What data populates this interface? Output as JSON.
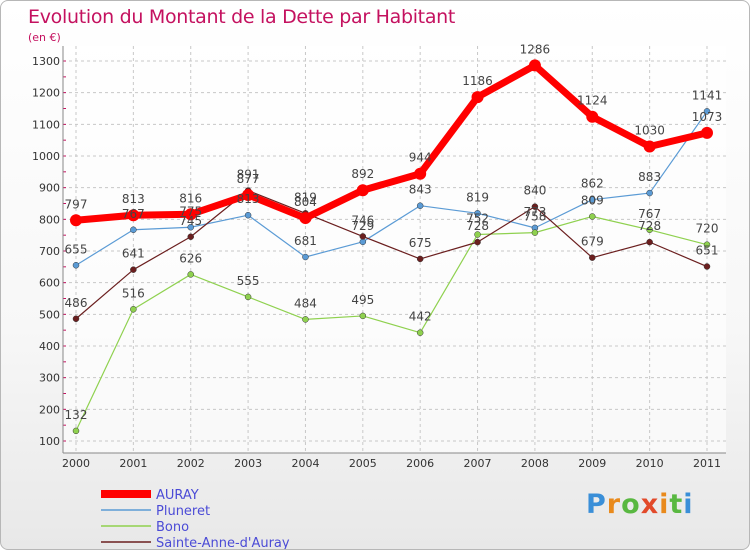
{
  "title": "Evolution du Montant de la Dette par Habitant",
  "subtitle": "(en €)",
  "logo": "Proxiti",
  "chart_data": {
    "type": "line",
    "x": [
      "2000",
      "2001",
      "2002",
      "2003",
      "2004",
      "2005",
      "2006",
      "2007",
      "2008",
      "2009",
      "2010",
      "2011"
    ],
    "y_ticks": [
      100,
      200,
      300,
      400,
      500,
      600,
      700,
      800,
      900,
      1000,
      1100,
      1200,
      1300
    ],
    "ylim": [
      100,
      1300
    ],
    "grid": true,
    "legend_position": "bottom-left",
    "series": [
      {
        "name": "AURAY",
        "color": "#ff0000",
        "values": [
          797,
          813,
          816,
          877,
          804,
          892,
          944,
          1186,
          1286,
          1124,
          1030,
          1073
        ],
        "labels": [
          "797",
          "813",
          "816",
          "877",
          "804",
          "892",
          "944",
          "1186",
          "1286",
          "1124",
          "1030",
          "1073"
        ]
      },
      {
        "name": "Pluneret",
        "color": "#5b9bd5",
        "values": [
          655,
          767,
          775,
          813,
          681,
          729,
          843,
          819,
          773,
          862,
          883,
          1141
        ],
        "labels": [
          "655",
          "767",
          "775",
          "813",
          "681",
          "729",
          "843",
          "819",
          "773",
          "862",
          "883",
          "1141"
        ]
      },
      {
        "name": "Bono",
        "color": "#8fd14f",
        "values": [
          132,
          516,
          626,
          555,
          484,
          495,
          442,
          752,
          758,
          809,
          767,
          720
        ],
        "labels": [
          "132",
          "516",
          "626",
          "555",
          "484",
          "495",
          "442",
          "752",
          "758",
          "809",
          "767",
          "720"
        ]
      },
      {
        "name": "Sainte-Anne-d'Auray",
        "color": "#6b1f1f",
        "values": [
          486,
          641,
          745,
          891,
          819,
          746,
          675,
          728,
          840,
          679,
          728,
          651
        ],
        "labels": [
          "486",
          "641",
          "745",
          "891",
          "819",
          "746",
          "675",
          "728",
          "840",
          "679",
          "728",
          "651"
        ]
      }
    ]
  }
}
